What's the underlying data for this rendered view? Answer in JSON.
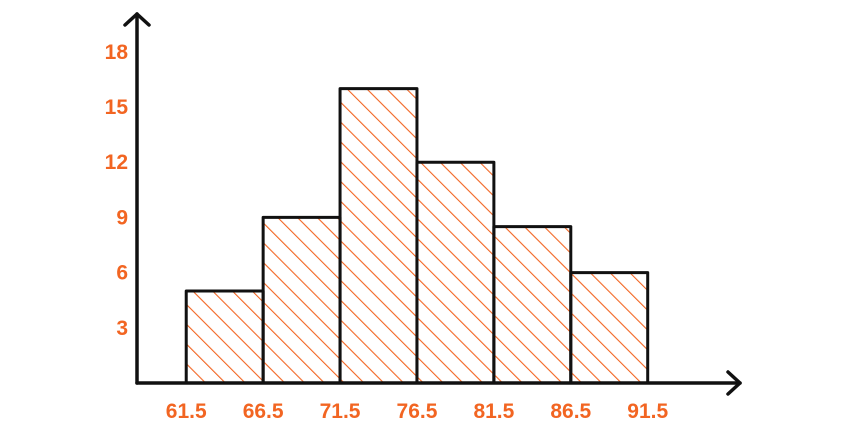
{
  "chart_data": {
    "type": "bar",
    "subtype": "histogram",
    "bin_edges": [
      "61.5",
      "66.5",
      "71.5",
      "76.5",
      "81.5",
      "86.5",
      "91.5"
    ],
    "values": [
      5,
      9,
      16,
      12,
      8.5,
      6
    ],
    "y_ticks": [
      "3",
      "6",
      "9",
      "12",
      "15",
      "18"
    ],
    "ylim": [
      0,
      20
    ],
    "xlim": [
      58.3,
      97.5
    ],
    "title": "",
    "xlabel": "",
    "ylabel": "",
    "grid": false,
    "fill_pattern": "diagonal-hatch",
    "colors": {
      "hatch": "#f26522",
      "tick_labels": "#f26522",
      "outline": "#111111",
      "axes": "#111111"
    }
  }
}
